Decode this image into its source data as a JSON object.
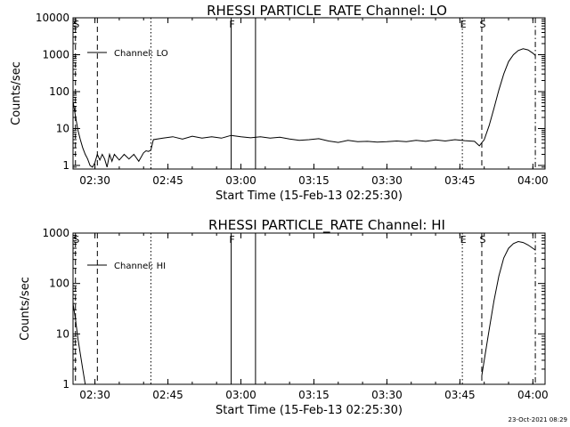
{
  "chart_data": [
    {
      "type": "line",
      "title": "RHESSI PARTICLE_RATE Channel: LO",
      "xlabel": "Start Time (15-Feb-13 02:25:30)",
      "ylabel": "Counts/sec",
      "xlim": [
        "02:25:30",
        "04:02:30"
      ],
      "ylim": [
        0.8,
        10000
      ],
      "y_scale": "log",
      "grid": false,
      "legend_position": "top-left",
      "x_ticks": [
        "02:30",
        "02:45",
        "03:00",
        "03:15",
        "03:30",
        "03:45",
        "04:00"
      ],
      "y_ticks": [
        "1",
        "10",
        "100",
        "1000",
        "10000"
      ],
      "series": [
        {
          "name": "Channel: LO",
          "x": [
            "02:25:30",
            "02:26:00",
            "02:26:30",
            "02:27:00",
            "02:27:30",
            "02:28:00",
            "02:28:30",
            "02:29:00",
            "02:29:30",
            "02:30:00",
            "02:30:30",
            "02:31:00",
            "02:31:30",
            "02:32:00",
            "02:32:30",
            "02:33:00",
            "02:33:30",
            "02:34:00",
            "02:35:00",
            "02:36:00",
            "02:37:00",
            "02:38:00",
            "02:39:00",
            "02:40:00",
            "02:40:30",
            "02:41:00",
            "02:41:30",
            "02:42:00",
            "02:44:00",
            "02:46:00",
            "02:48:00",
            "02:50:00",
            "02:52:00",
            "02:54:00",
            "02:56:00",
            "02:58:00",
            "03:00:00",
            "03:02:00",
            "03:04:00",
            "03:06:00",
            "03:08:00",
            "03:10:00",
            "03:12:00",
            "03:14:00",
            "03:16:00",
            "03:18:00",
            "03:20:00",
            "03:22:00",
            "03:24:00",
            "03:26:00",
            "03:28:00",
            "03:30:00",
            "03:32:00",
            "03:34:00",
            "03:36:00",
            "03:38:00",
            "03:40:00",
            "03:42:00",
            "03:44:00",
            "03:46:00",
            "03:48:00",
            "03:49:00",
            "03:50:00",
            "03:51:00",
            "03:52:00",
            "03:53:00",
            "03:54:00",
            "03:55:00",
            "03:56:00",
            "03:57:00",
            "03:58:00",
            "03:59:00",
            "04:00:00",
            "04:00:30"
          ],
          "values": [
            55,
            22,
            9,
            5,
            3,
            2,
            1.5,
            1,
            0.9,
            1.2,
            2,
            1.4,
            2,
            1.5,
            0.9,
            2,
            1.3,
            2,
            1.4,
            2,
            1.5,
            2,
            1.3,
            2.2,
            2.5,
            2.4,
            2.6,
            5,
            5.5,
            6,
            5.2,
            6.2,
            5.5,
            6,
            5.5,
            6.5,
            6,
            5.6,
            6,
            5.5,
            5.8,
            5.2,
            4.8,
            5,
            5.3,
            4.6,
            4.2,
            4.8,
            4.4,
            4.5,
            4.3,
            4.4,
            4.6,
            4.4,
            4.8,
            4.5,
            4.9,
            4.6,
            5,
            4.7,
            4.5,
            3.4,
            5,
            12,
            35,
            110,
            300,
            650,
            1000,
            1300,
            1450,
            1350,
            1100,
            950
          ]
        }
      ],
      "markers": [
        {
          "label": "S",
          "time": "02:26:00",
          "style": "dashed"
        },
        {
          "time": "02:30:30",
          "style": "dashed"
        },
        {
          "time": "02:41:30",
          "style": "dotted"
        },
        {
          "label": "F",
          "time": "02:58:00",
          "style": "solid"
        },
        {
          "time": "03:03:00",
          "style": "solid"
        },
        {
          "label": "E",
          "time": "03:45:30",
          "style": "dotted"
        },
        {
          "label": "S",
          "time": "03:49:30",
          "style": "dashed"
        },
        {
          "time": "04:00:30",
          "style": "dash-dot"
        }
      ]
    },
    {
      "type": "line",
      "title": "RHESSI PARTICLE_RATE Channel: HI",
      "xlabel": "Start Time (15-Feb-13 02:25:30)",
      "ylabel": "Counts/sec",
      "xlim": [
        "02:25:30",
        "04:02:30"
      ],
      "ylim": [
        1,
        1000
      ],
      "y_scale": "log",
      "grid": false,
      "legend_position": "top-left",
      "x_ticks": [
        "02:30",
        "02:45",
        "03:00",
        "03:15",
        "03:30",
        "03:45",
        "04:00"
      ],
      "y_ticks": [
        "1",
        "10",
        "100",
        "1000"
      ],
      "series": [
        {
          "name": "Channel: HI",
          "x": [
            "02:25:30",
            "02:26:00",
            "02:26:30",
            "02:27:00",
            "02:27:30",
            "02:28:00",
            "03:49:30",
            "03:50:00",
            "03:51:00",
            "03:52:00",
            "03:53:00",
            "03:54:00",
            "03:55:00",
            "03:56:00",
            "03:57:00",
            "03:58:00",
            "03:59:00",
            "04:00:00",
            "04:00:30"
          ],
          "values": [
            40,
            20,
            8,
            4,
            2,
            1,
            1.5,
            3,
            12,
            45,
            140,
            320,
            500,
            620,
            680,
            650,
            580,
            500,
            460
          ]
        }
      ],
      "markers": [
        {
          "label": "S",
          "time": "02:26:00",
          "style": "dashed"
        },
        {
          "time": "02:30:30",
          "style": "dashed"
        },
        {
          "time": "02:41:30",
          "style": "dotted"
        },
        {
          "label": "F",
          "time": "02:58:00",
          "style": "solid"
        },
        {
          "time": "03:03:00",
          "style": "solid"
        },
        {
          "label": "E",
          "time": "03:45:30",
          "style": "dotted"
        },
        {
          "label": "S",
          "time": "03:49:30",
          "style": "dashed"
        },
        {
          "time": "04:00:30",
          "style": "dash-dot"
        }
      ]
    }
  ],
  "footer": {
    "timestamp": "23-Oct-2021 08:29"
  }
}
